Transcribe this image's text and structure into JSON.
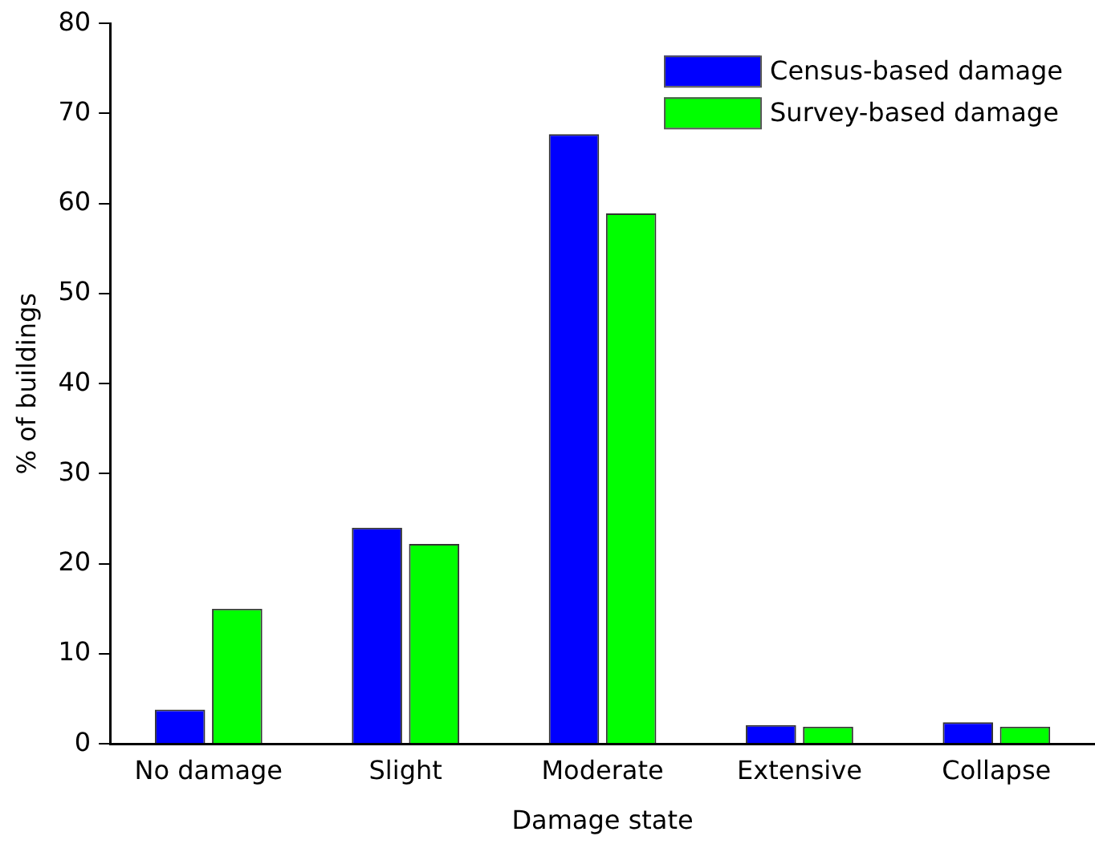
{
  "chart_data": {
    "type": "bar",
    "xlabel": "Damage state",
    "ylabel": "% of buildings",
    "categories": [
      "No damage",
      "Slight",
      "Moderate",
      "Extensive",
      "Collapse"
    ],
    "series": [
      {
        "name": "Census-based damage",
        "color": "#0000ff",
        "values": [
          3.8,
          24.0,
          67.7,
          2.1,
          2.4
        ]
      },
      {
        "name": "Survey-based damage",
        "color": "#00ff00",
        "values": [
          15.0,
          22.2,
          58.9,
          1.9,
          1.9
        ]
      }
    ],
    "ylim": [
      0,
      80
    ],
    "yticks": [
      0,
      10,
      20,
      30,
      40,
      50,
      60,
      70,
      80
    ],
    "grid": false,
    "legend": "top right"
  }
}
